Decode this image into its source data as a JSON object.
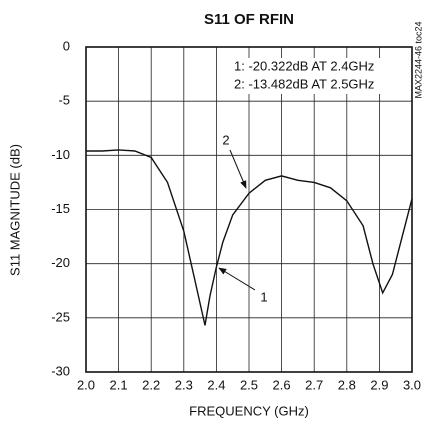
{
  "chart_data": {
    "type": "line",
    "title": "S11 OF RFIN",
    "x_label": "FREQUENCY (GHz)",
    "y_label": "S11 MAGNITUDE (dB)",
    "side_note": "MAX2244-46 toc24",
    "readouts": [
      "1: -20.322dB AT 2.4GHz",
      "2: -13.482dB AT 2.5GHz"
    ],
    "marker_labels": [
      "1",
      "2"
    ],
    "x": [
      2.0,
      2.05,
      2.1,
      2.15,
      2.2,
      2.25,
      2.3,
      2.33,
      2.365,
      2.38,
      2.4,
      2.42,
      2.45,
      2.5,
      2.55,
      2.6,
      2.65,
      2.7,
      2.75,
      2.8,
      2.85,
      2.88,
      2.91,
      2.94,
      2.97,
      3.0
    ],
    "series": [
      {
        "name": "S11",
        "color": "#111111",
        "values": [
          -9.6,
          -9.6,
          -9.5,
          -9.6,
          -10.2,
          -12.5,
          -17,
          -21,
          -25.7,
          -23,
          -20.3,
          -18,
          -15.5,
          -13.5,
          -12.3,
          -11.9,
          -12.3,
          -12.5,
          -13,
          -14.2,
          -16.5,
          -20,
          -22.7,
          -21,
          -17.5,
          -14
        ]
      }
    ],
    "xlim": [
      2.0,
      3.0
    ],
    "xticks": [
      {
        "value": 2.0,
        "label": "2.0"
      },
      2.1,
      2.2,
      2.3,
      2.4,
      2.5,
      2.6,
      2.7,
      2.8,
      2.9,
      {
        "value": 3.0,
        "label": "3.0"
      }
    ],
    "ylim": [
      -30,
      0
    ],
    "yticks": [
      0,
      -5,
      -10,
      -15,
      -20,
      -25,
      -30
    ],
    "grid": true
  }
}
